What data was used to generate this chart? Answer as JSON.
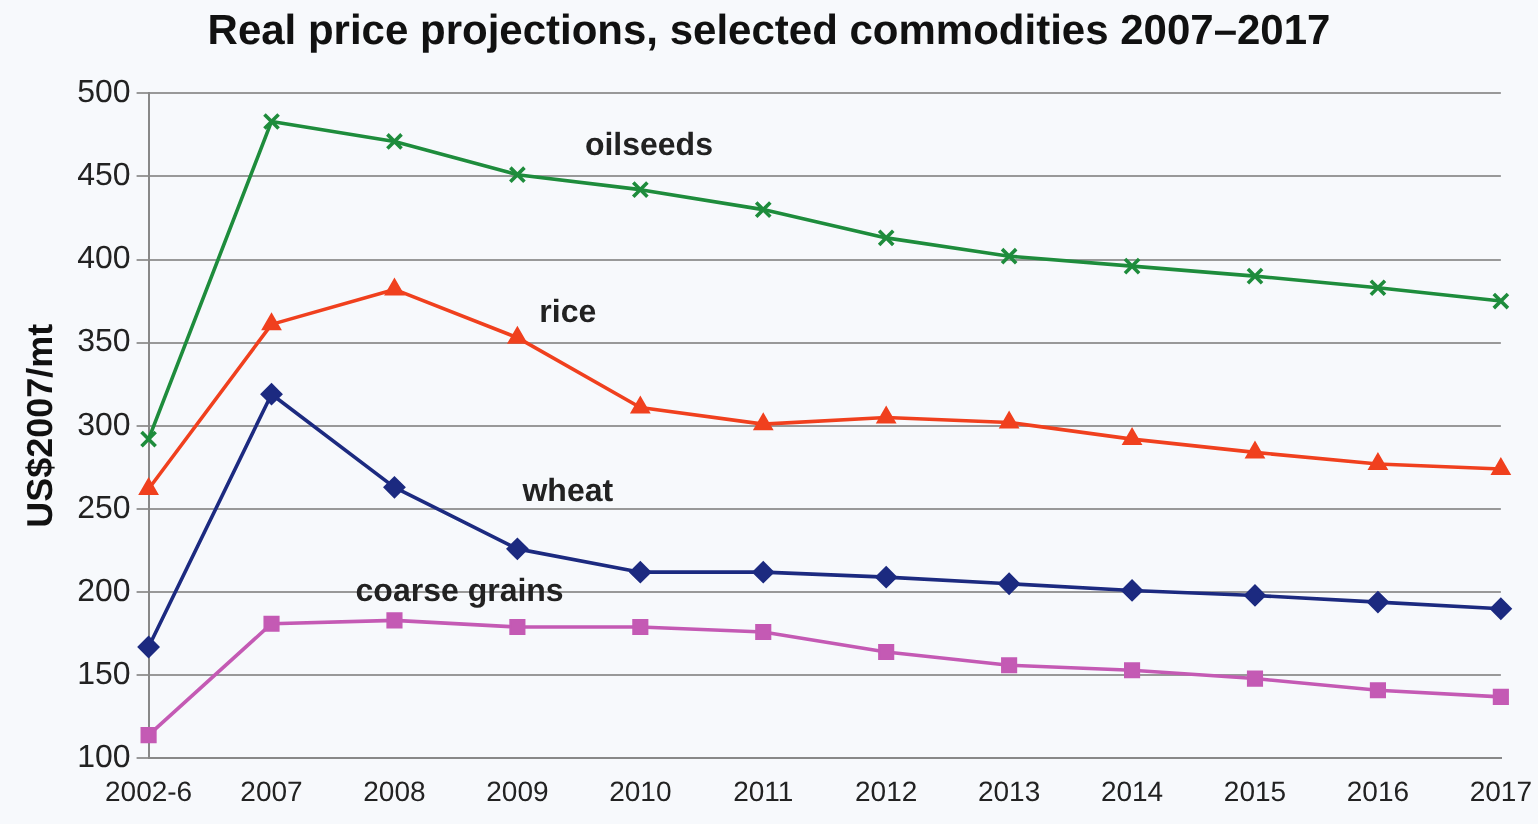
{
  "chart_data": {
    "type": "line",
    "title": "Real price projections, selected commodities 2007–2017",
    "ylabel": "US$2007/mt",
    "categories": [
      "2002-6",
      "2007",
      "2008",
      "2009",
      "2010",
      "2011",
      "2012",
      "2013",
      "2014",
      "2015",
      "2016",
      "2017"
    ],
    "ylim": [
      100,
      500
    ],
    "yticks": [
      100,
      150,
      200,
      250,
      300,
      350,
      400,
      450,
      500
    ],
    "grid": "y",
    "legend": false,
    "series": [
      {
        "name": "oilseeds",
        "color": "#1e8c3c",
        "marker": "cross",
        "values": [
          292,
          483,
          471,
          451,
          442,
          430,
          413,
          402,
          396,
          390,
          383,
          375
        ]
      },
      {
        "name": "rice",
        "color": "#f0401e",
        "marker": "triangle",
        "values": [
          262,
          361,
          382,
          353,
          311,
          301,
          305,
          302,
          292,
          284,
          277,
          274
        ]
      },
      {
        "name": "wheat",
        "color": "#1c2a80",
        "marker": "diamond",
        "values": [
          167,
          319,
          263,
          226,
          212,
          212,
          209,
          205,
          201,
          198,
          194,
          190
        ]
      },
      {
        "name": "coarse grains",
        "color": "#c45ab4",
        "marker": "square",
        "values": [
          114,
          181,
          183,
          179,
          179,
          176,
          164,
          156,
          153,
          148,
          141,
          137
        ]
      }
    ]
  }
}
